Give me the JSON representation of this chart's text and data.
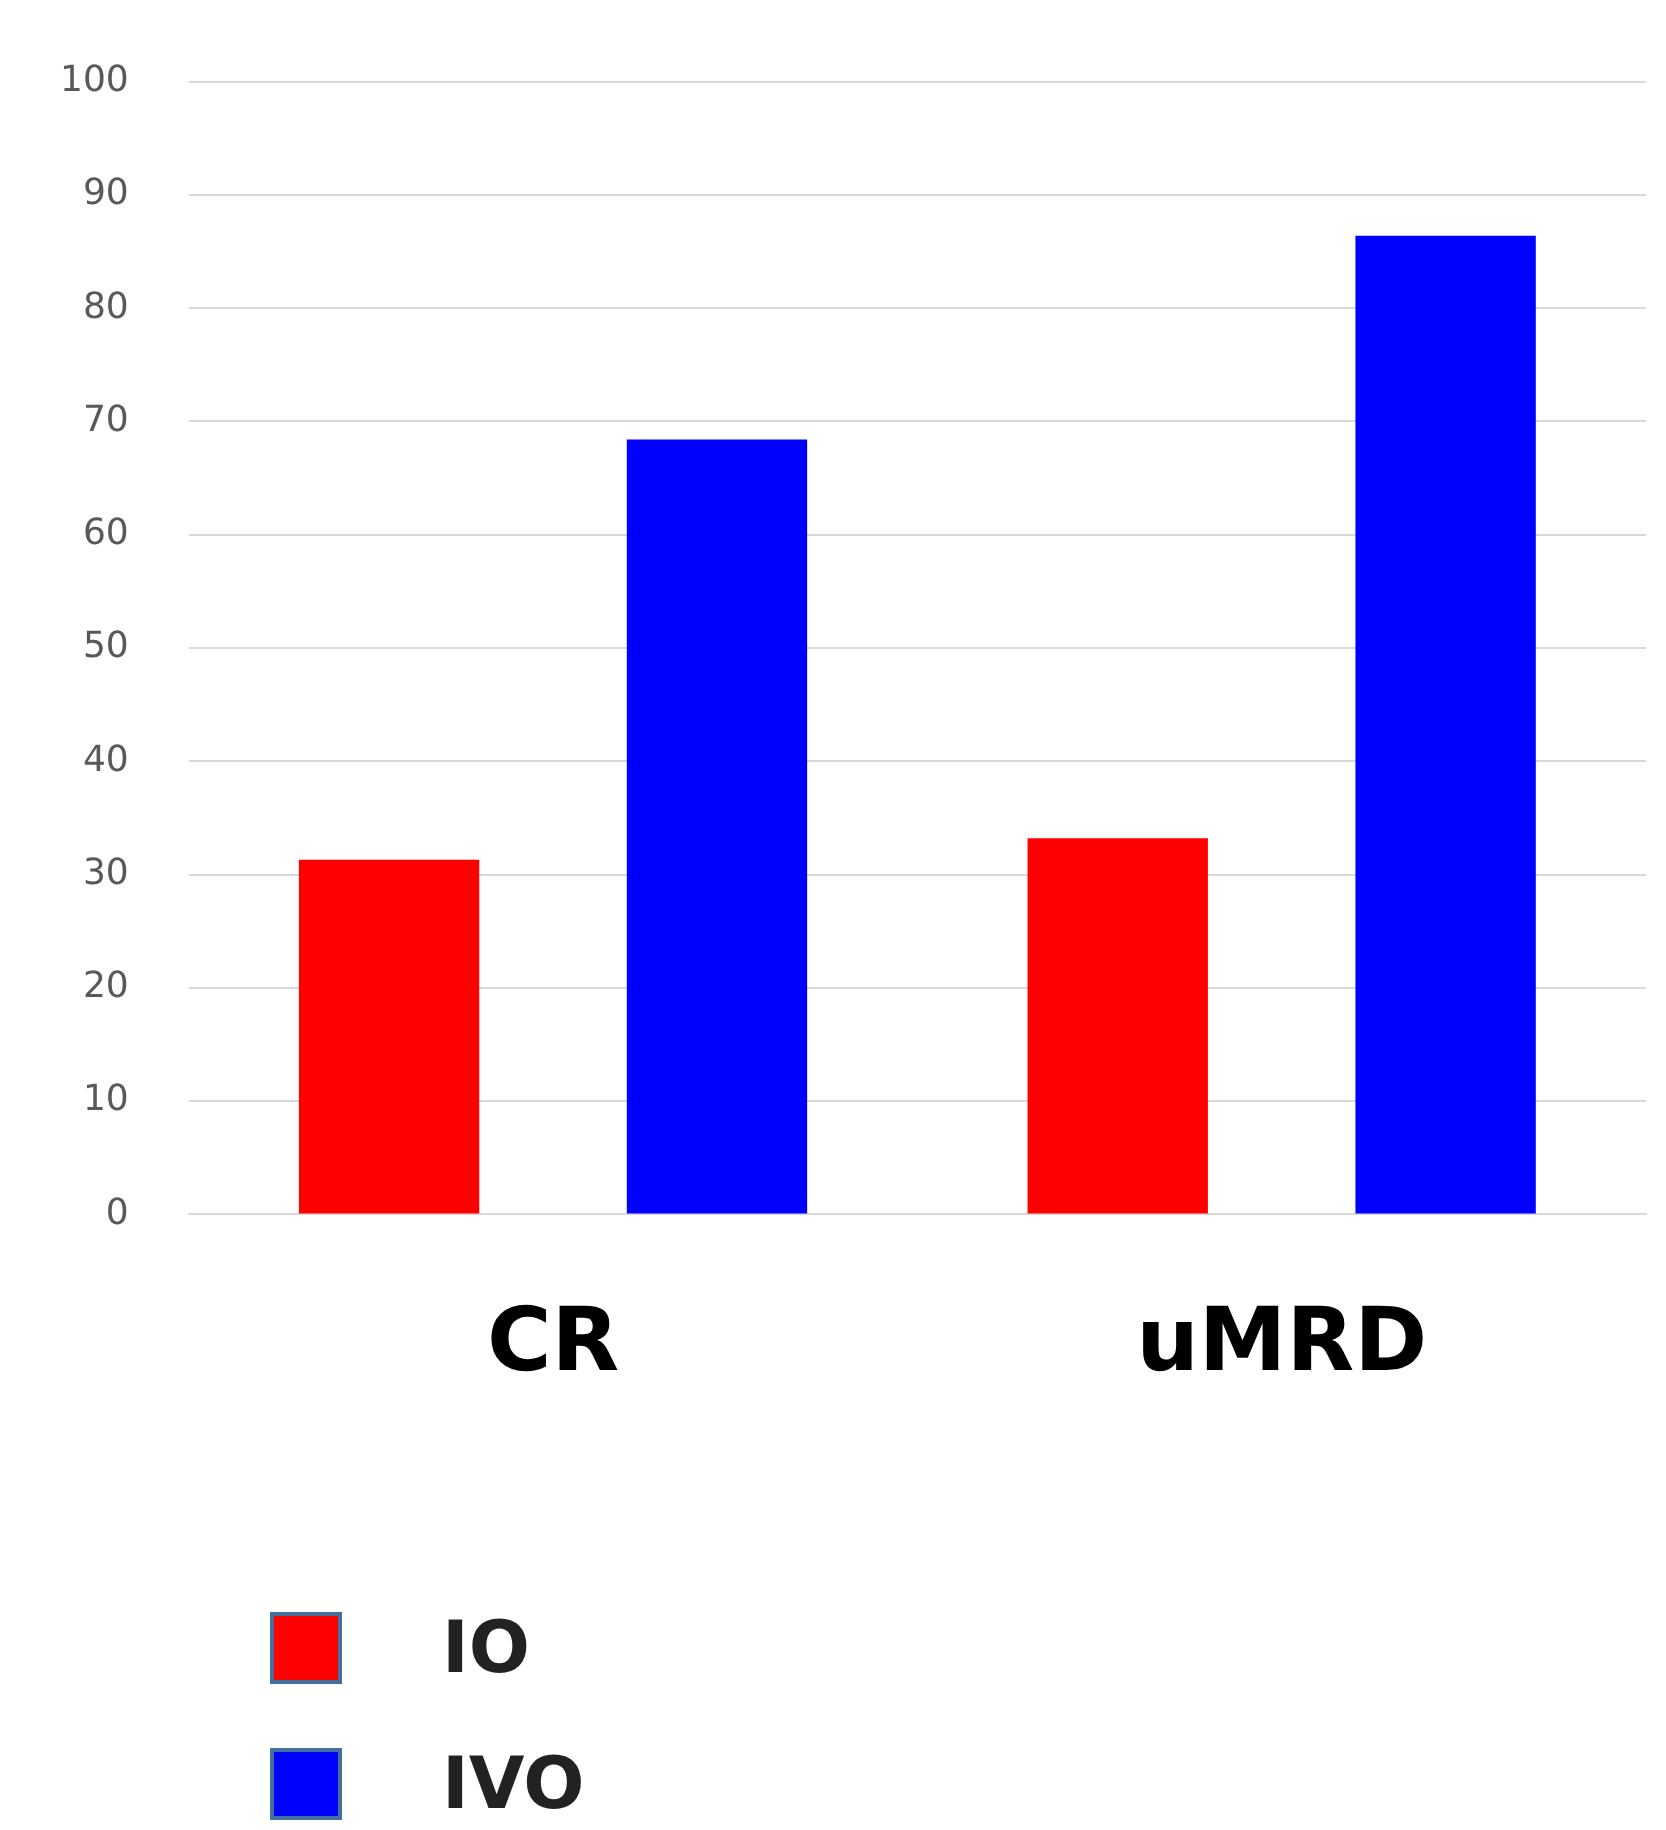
{
  "chart_data": {
    "type": "bar",
    "categories": [
      "CR",
      "uMRD"
    ],
    "series": [
      {
        "name": "IO",
        "color": "#ff0000",
        "values": [
          31.3,
          33.2
        ]
      },
      {
        "name": "IVO",
        "color": "#0000ff",
        "values": [
          68.4,
          86.4
        ]
      }
    ],
    "ylim": [
      0,
      100
    ],
    "yticks": [
      0,
      10,
      20,
      30,
      40,
      50,
      60,
      70,
      80,
      90,
      100
    ],
    "grid": "y",
    "legend": "bottom left"
  }
}
